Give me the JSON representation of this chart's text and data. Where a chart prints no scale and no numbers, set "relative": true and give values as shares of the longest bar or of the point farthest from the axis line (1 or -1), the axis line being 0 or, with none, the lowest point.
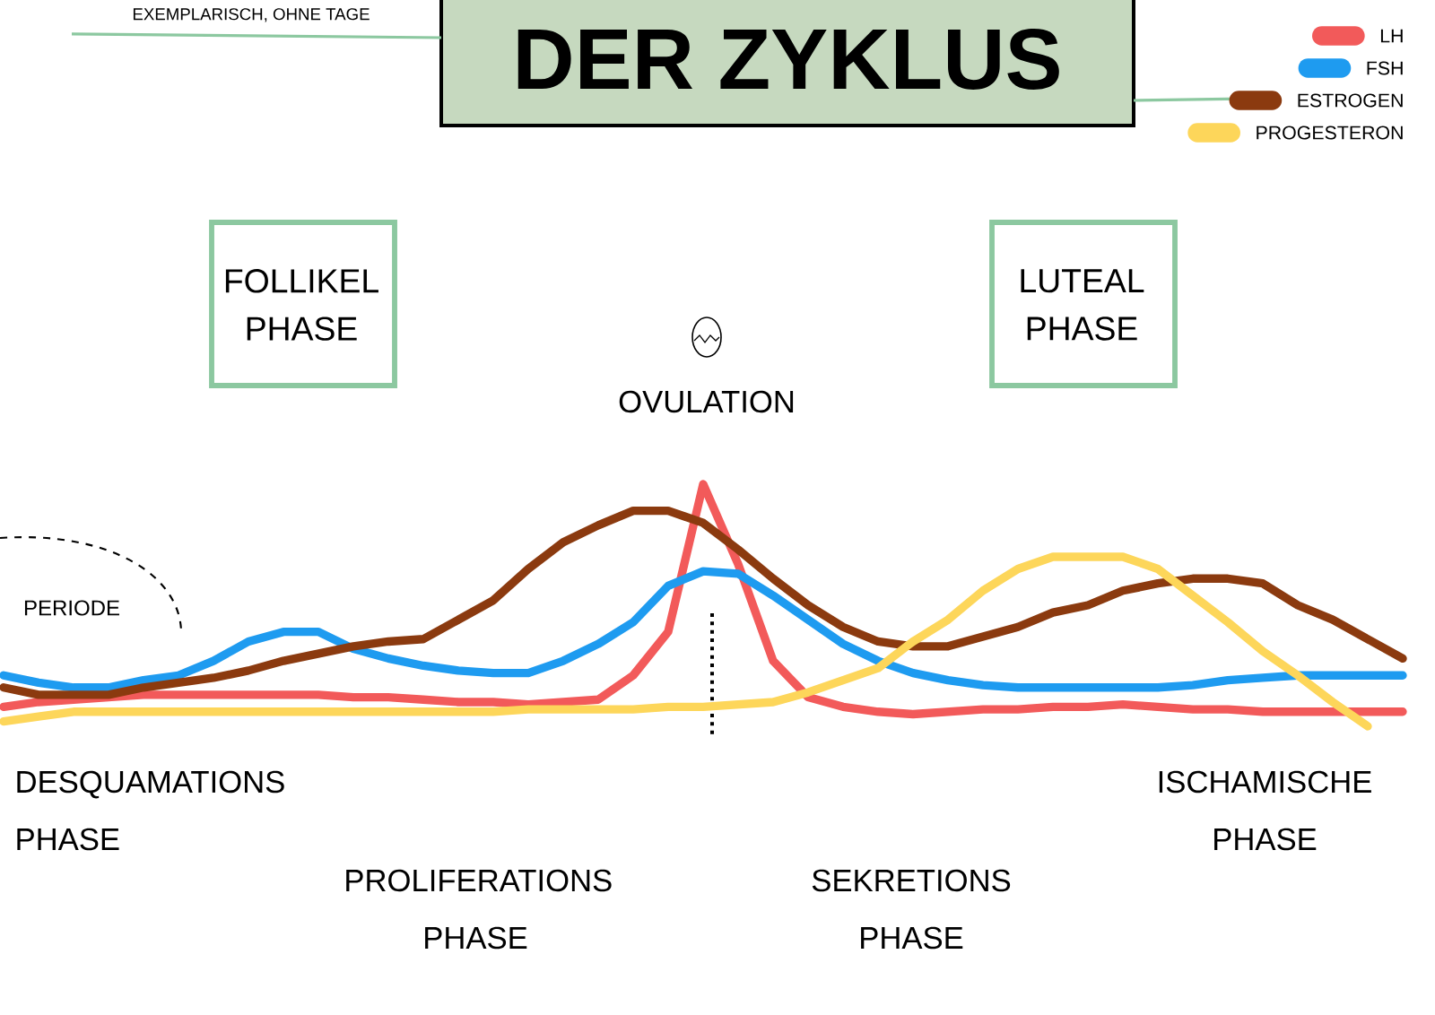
{
  "chart_data": {
    "type": "line",
    "title": "DER ZYKLUS",
    "subtitle": "EXEMPLARISCH, OHNE TAGE",
    "relative": true,
    "legend": "top right",
    "marker": "none",
    "line_style": "solid",
    "categories": [
      null,
      null,
      null,
      null,
      null,
      null,
      null,
      null,
      null,
      null,
      null,
      null,
      null,
      null,
      null,
      null,
      null,
      null,
      null,
      null,
      null,
      null,
      null,
      null,
      null,
      null,
      null,
      null,
      null,
      null,
      null,
      null,
      null,
      null,
      null,
      null,
      null,
      null,
      null,
      null,
      null
    ],
    "series": [
      {
        "name": "LH",
        "color": "#f25a5a",
        "values": [
          0.08,
          0.1,
          0.11,
          0.12,
          0.13,
          0.13,
          0.13,
          0.13,
          0.13,
          0.13,
          0.12,
          0.12,
          0.11,
          0.1,
          0.1,
          0.09,
          0.1,
          0.11,
          0.21,
          0.39,
          1,
          0.67,
          0.27,
          0.12,
          0.08,
          0.06,
          0.05,
          0.06,
          0.07,
          0.07,
          0.08,
          0.08,
          0.09,
          0.08,
          0.07,
          0.07,
          0.06,
          0.06,
          0.06,
          0.06,
          0.06
        ]
      },
      {
        "name": "FSH",
        "color": "#1e9bf0",
        "values": [
          0.21,
          0.18,
          0.16,
          0.16,
          0.19,
          0.21,
          0.27,
          0.35,
          0.39,
          0.39,
          0.32,
          0.28,
          0.25,
          0.23,
          0.22,
          0.22,
          0.27,
          0.34,
          0.43,
          0.58,
          0.64,
          0.63,
          0.54,
          0.44,
          0.34,
          0.27,
          0.22,
          0.19,
          0.17,
          0.16,
          0.16,
          0.16,
          0.16,
          0.16,
          0.17,
          0.19,
          0.2,
          0.21,
          0.21,
          0.21,
          0.21
        ]
      },
      {
        "name": "ESTROGEN",
        "color": "#8b3a0f",
        "values": [
          0.16,
          0.13,
          0.13,
          0.13,
          0.16,
          0.18,
          0.2,
          0.23,
          0.27,
          0.3,
          0.33,
          0.35,
          0.36,
          0.44,
          0.52,
          0.65,
          0.76,
          0.83,
          0.89,
          0.89,
          0.84,
          0.73,
          0.61,
          0.5,
          0.41,
          0.35,
          0.33,
          0.33,
          0.37,
          0.41,
          0.47,
          0.5,
          0.56,
          0.59,
          0.61,
          0.61,
          0.59,
          0.5,
          0.44,
          0.36,
          0.28
        ]
      },
      {
        "name": "PROGESTERON",
        "color": "#fdd65a",
        "values": [
          0.02,
          0.04,
          0.06,
          0.06,
          0.06,
          0.06,
          0.06,
          0.06,
          0.06,
          0.06,
          0.06,
          0.06,
          0.06,
          0.06,
          0.06,
          0.07,
          0.07,
          0.07,
          0.07,
          0.08,
          0.08,
          0.09,
          0.1,
          0.14,
          0.19,
          0.24,
          0.35,
          0.44,
          0.56,
          0.65,
          0.7,
          0.7,
          0.7,
          0.65,
          0.54,
          0.43,
          0.31,
          0.21,
          0.1,
          0,
          null
        ]
      }
    ],
    "annotations": [
      "FOLLIKEL PHASE",
      "LUTEAL PHASE",
      "OVULATION",
      "PERIODE",
      "DESQUAMATIONS PHASE",
      "PROLIFERATIONS PHASE",
      "SEKRETIONS PHASE",
      "ISCHAMISCHE PHASE"
    ]
  }
}
